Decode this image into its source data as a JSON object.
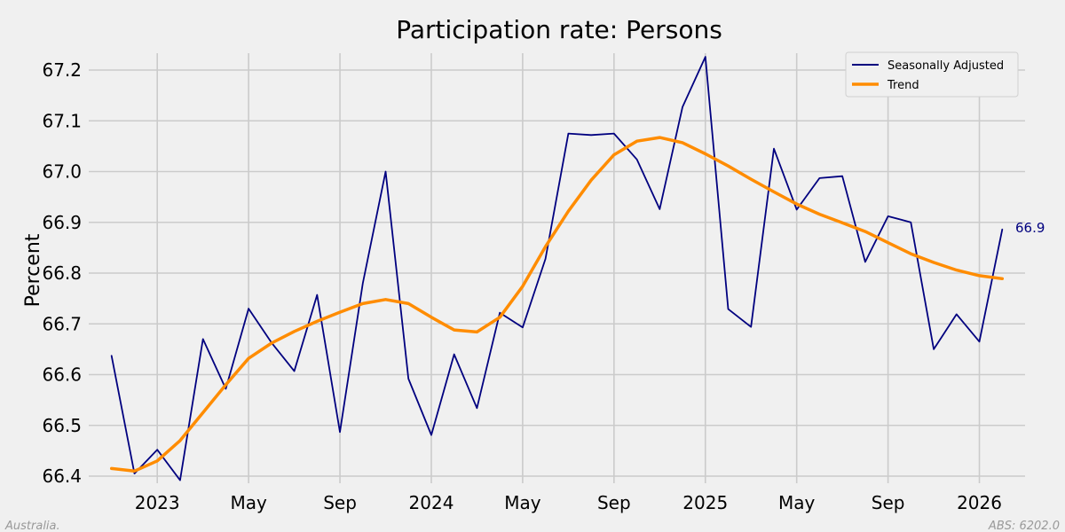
{
  "chart_data": {
    "type": "line",
    "title": "Participation rate: Persons",
    "xlabel": "",
    "ylabel": "Percent",
    "ylim": [
      66.4,
      67.2
    ],
    "yticks": [
      66.4,
      66.5,
      66.6,
      66.7,
      66.8,
      66.9,
      67.0,
      67.1,
      67.2
    ],
    "ytick_labels": [
      "66.4",
      "66.5",
      "66.6",
      "66.7",
      "66.8",
      "66.9",
      "67.0",
      "67.1",
      "67.2"
    ],
    "xlim": [
      "2022-10",
      "2026-03"
    ],
    "xticks": [
      {
        "date": "2023-01",
        "label": "2023"
      },
      {
        "date": "2023-05",
        "label": "May"
      },
      {
        "date": "2023-09",
        "label": "Sep"
      },
      {
        "date": "2024-01",
        "label": "2024"
      },
      {
        "date": "2024-05",
        "label": "May"
      },
      {
        "date": "2024-09",
        "label": "Sep"
      },
      {
        "date": "2025-01",
        "label": "2025"
      },
      {
        "date": "2025-05",
        "label": "May"
      },
      {
        "date": "2025-09",
        "label": "Sep"
      },
      {
        "date": "2026-01",
        "label": "2026"
      }
    ],
    "x": [
      "2022-11",
      "2022-12",
      "2023-01",
      "2023-02",
      "2023-03",
      "2023-04",
      "2023-05",
      "2023-06",
      "2023-07",
      "2023-08",
      "2023-09",
      "2023-10",
      "2023-11",
      "2023-12",
      "2024-01",
      "2024-02",
      "2024-03",
      "2024-04",
      "2024-05",
      "2024-06",
      "2024-07",
      "2024-08",
      "2024-09",
      "2024-10",
      "2024-11",
      "2024-12",
      "2025-01",
      "2025-02",
      "2025-03",
      "2025-04",
      "2025-05",
      "2025-06",
      "2025-07",
      "2025-08",
      "2025-09",
      "2025-10",
      "2025-11",
      "2025-12",
      "2026-01",
      "2026-02"
    ],
    "series": [
      {
        "name": "Seasonally Adjusted",
        "color": "#00007f",
        "values": [
          66.637,
          66.405,
          66.452,
          66.392,
          66.67,
          66.572,
          66.73,
          66.663,
          66.607,
          66.757,
          66.487,
          66.78,
          67.0,
          66.592,
          66.481,
          66.64,
          66.534,
          66.722,
          66.693,
          66.828,
          67.075,
          67.072,
          67.075,
          67.024,
          66.926,
          67.127,
          67.226,
          66.729,
          66.694,
          67.045,
          66.925,
          66.987,
          66.991,
          66.822,
          66.912,
          66.9,
          66.65,
          66.719,
          66.665,
          66.886
        ]
      },
      {
        "name": "Trend",
        "color": "#ff8c00",
        "values": [
          66.415,
          66.41,
          66.43,
          66.47,
          66.525,
          66.58,
          66.632,
          66.662,
          66.685,
          66.705,
          66.723,
          66.74,
          66.748,
          66.74,
          66.713,
          66.688,
          66.684,
          66.713,
          66.774,
          66.852,
          66.922,
          66.983,
          67.033,
          67.06,
          67.067,
          67.057,
          67.035,
          67.011,
          66.985,
          66.96,
          66.936,
          66.916,
          66.899,
          66.882,
          66.86,
          66.838,
          66.821,
          66.806,
          66.795,
          66.789
        ]
      }
    ],
    "end_label": {
      "series": "Seasonally Adjusted",
      "text": "66.9"
    },
    "legend_position": "top-right",
    "grid": true
  },
  "footer": {
    "left": "Australia.",
    "right": "ABS: 6202.0"
  }
}
